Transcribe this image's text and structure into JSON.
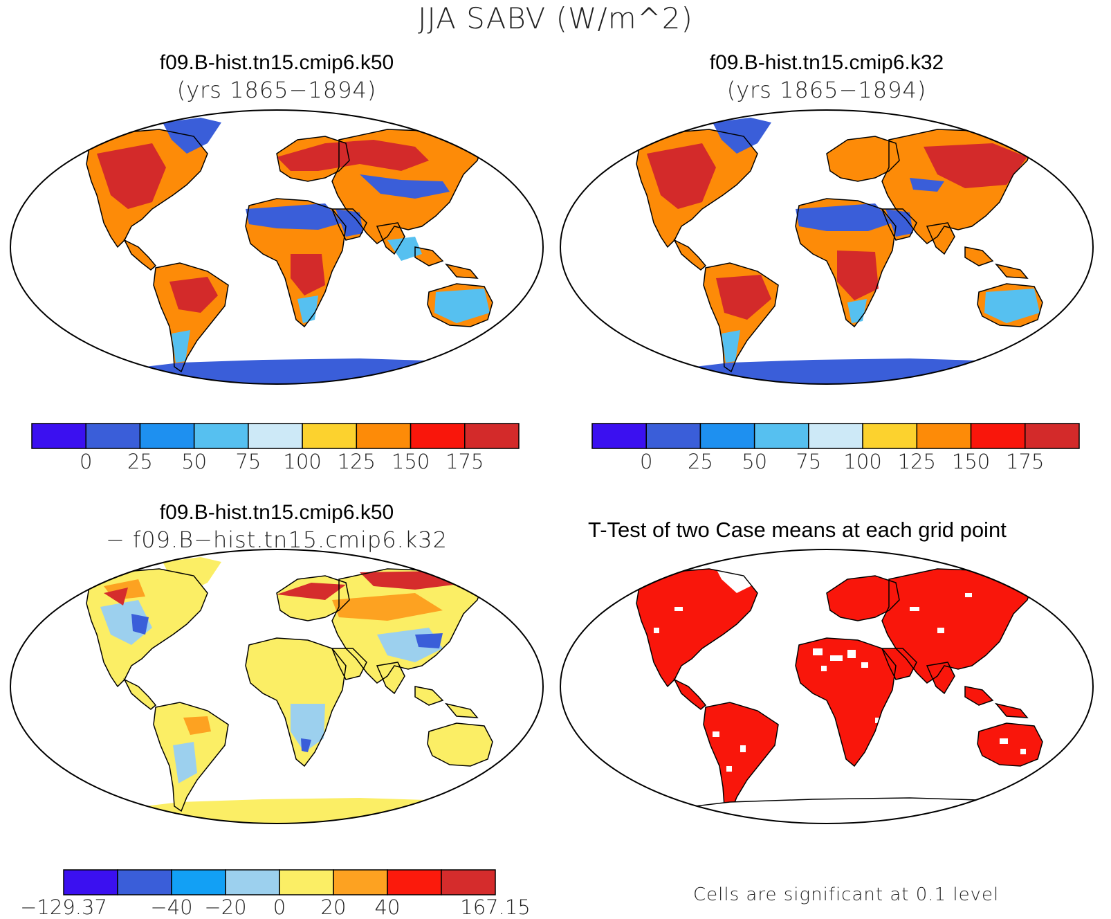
{
  "title": "JJA SABV (W/m^2)",
  "panels": {
    "top_left": {
      "line1": "f09.B-hist.tn15.cmip6.k50",
      "line2": "(yrs 1865−1894)"
    },
    "top_right": {
      "line1": "f09.B-hist.tn15.cmip6.k32",
      "line2": "(yrs 1865−1894)"
    },
    "bottom_left": {
      "line1": "f09.B-hist.tn15.cmip6.k50",
      "line2": "− f09.B−hist.tn15.cmip6.k32"
    },
    "bottom_right": {
      "title": "T-Test of two Case means at each grid point",
      "note": "Cells are significant at 0.1 level"
    }
  },
  "colorbars": {
    "abs": {
      "colors": [
        "#3b10f0",
        "#3a5ed9",
        "#1e90f0",
        "#56c0f0",
        "#cde9f7",
        "#fcd22e",
        "#fd8b08",
        "#f9160b",
        "#d32a2a"
      ],
      "labels": [
        "0",
        "25",
        "50",
        "75",
        "100",
        "125",
        "150",
        "175"
      ]
    },
    "diff": {
      "colors": [
        "#3b10f0",
        "#3a5ed9",
        "#12a0f5",
        "#9cd0ee",
        "#fbee65",
        "#fda221",
        "#fb1a0c",
        "#d52c2c"
      ],
      "labels": [
        "−129.37",
        "",
        "−40",
        "−20",
        "0",
        "20",
        "40",
        "",
        "167.15"
      ]
    }
  },
  "map_layers": {
    "abs": {
      "ocean": "#ffffff",
      "antarctica": "#3a5ed9",
      "sahara": "#3a5ed9",
      "greenland": "#3a5ed9"
    },
    "diff": {
      "antarctica": "#fbee65",
      "land": "#fbee65"
    },
    "ttest": {
      "land": "#f9160b",
      "antarctica": "#ffffff"
    }
  }
}
